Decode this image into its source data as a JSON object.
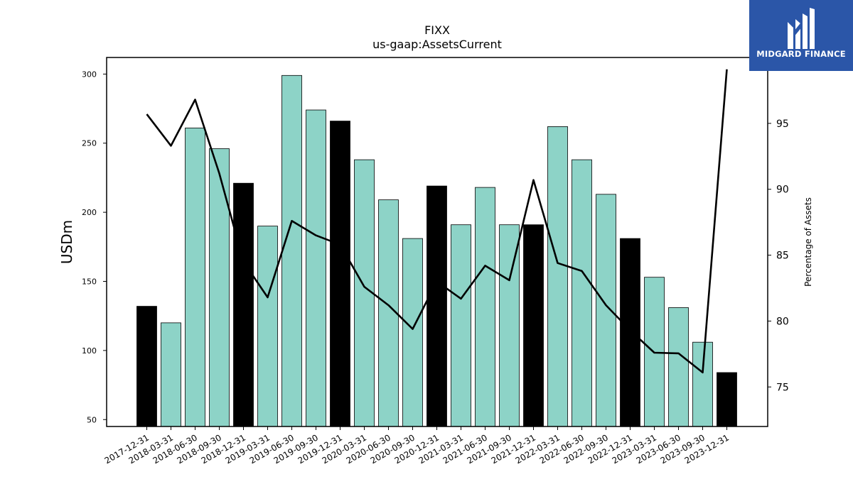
{
  "brand": {
    "name": "MIDGARD FINANCE",
    "color": "#2b56a8"
  },
  "chart_data": {
    "type": "bar",
    "title": "FIXX",
    "subtitle": "us-gaap:AssetsCurrent",
    "ylabel": "USDm",
    "y2label": "Percentage of Assets",
    "categories": [
      "2017-12-31",
      "2018-03-31",
      "2018-06-30",
      "2018-09-30",
      "2018-12-31",
      "2019-03-31",
      "2019-06-30",
      "2019-09-30",
      "2019-12-31",
      "2020-03-31",
      "2020-06-30",
      "2020-09-30",
      "2020-12-31",
      "2021-03-31",
      "2021-06-30",
      "2021-09-30",
      "2021-12-31",
      "2022-03-31",
      "2022-06-30",
      "2022-09-30",
      "2022-12-31",
      "2023-03-31",
      "2023-06-30",
      "2023-09-30",
      "2023-12-31"
    ],
    "series": [
      {
        "type": "bar",
        "values": [
          132,
          120,
          261,
          246,
          221,
          190,
          299,
          274,
          266,
          238,
          209,
          181,
          219,
          191,
          218,
          191,
          191,
          262,
          238,
          213,
          181,
          153,
          131,
          106,
          84
        ],
        "colors": [
          "#000000",
          "#8dd3c7",
          "#8dd3c7",
          "#8dd3c7",
          "#000000",
          "#8dd3c7",
          "#8dd3c7",
          "#8dd3c7",
          "#000000",
          "#8dd3c7",
          "#8dd3c7",
          "#8dd3c7",
          "#000000",
          "#8dd3c7",
          "#8dd3c7",
          "#8dd3c7",
          "#000000",
          "#8dd3c7",
          "#8dd3c7",
          "#8dd3c7",
          "#000000",
          "#8dd3c7",
          "#8dd3c7",
          "#8dd3c7",
          "#000000"
        ]
      },
      {
        "type": "line",
        "axis": "right",
        "color": "#000000",
        "values": [
          95.7,
          93.3,
          96.8,
          91.2,
          84.5,
          81.8,
          87.6,
          86.5,
          85.8,
          82.6,
          81.2,
          79.4,
          83.0,
          81.7,
          84.2,
          83.1,
          90.7,
          84.4,
          83.8,
          81.2,
          79.3,
          77.6,
          77.55,
          76.1,
          99.1
        ]
      }
    ],
    "ylim": [
      45,
      312
    ],
    "y2lim": [
      72.0,
      100.0
    ],
    "yticks": [
      50,
      100,
      150,
      200,
      250,
      300
    ],
    "y2ticks": [
      75,
      80,
      85,
      90,
      95
    ],
    "grid": false
  }
}
